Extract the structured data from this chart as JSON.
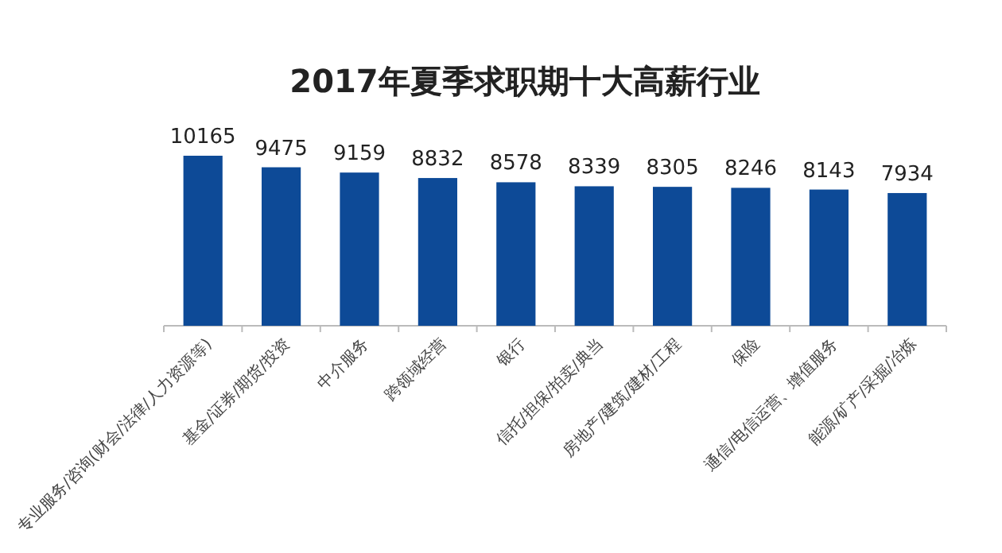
{
  "chart_data": {
    "type": "bar",
    "title": "2017年夏季求职期十大高薪行业",
    "categories": [
      "专业服务/咨询(财会/法律/人力资源等)",
      "基金/证券/期货/投资",
      "中介服务",
      "跨领域经营",
      "银行",
      "信托/担保/拍卖/典当",
      "房地产/建筑/建材/工程",
      "保险",
      "通信/电信运营、增值服务",
      "能源/矿产/采掘/冶炼"
    ],
    "values": [
      10165,
      9475,
      9159,
      8832,
      8578,
      8339,
      8305,
      8246,
      8143,
      7934
    ],
    "color": "#0d4a97",
    "data_labels": true
  }
}
